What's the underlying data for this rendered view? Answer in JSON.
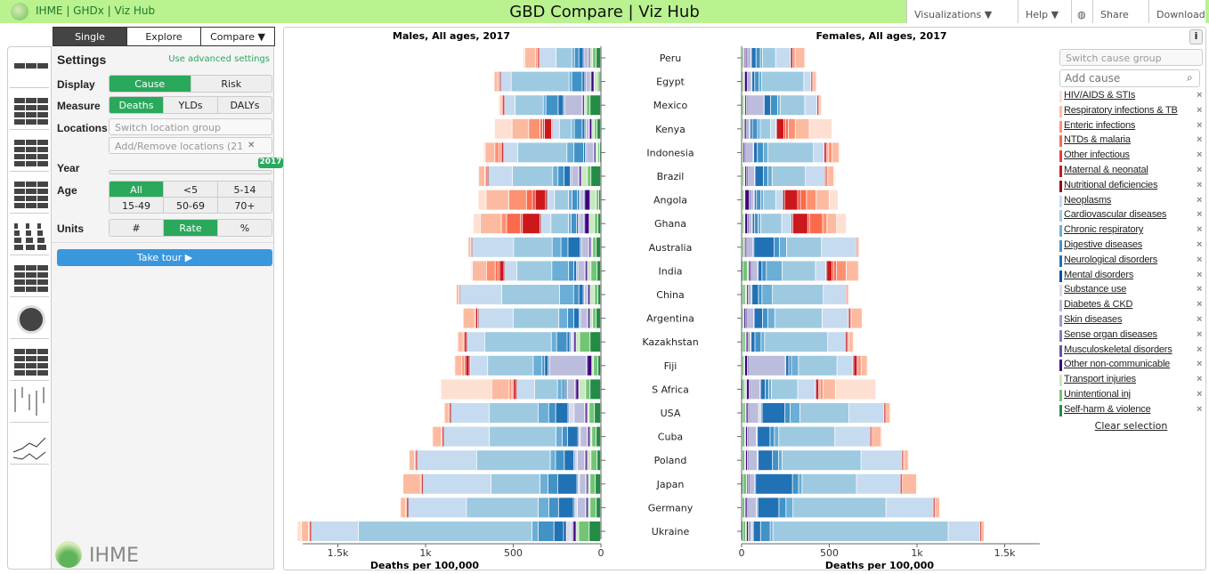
{
  "header": {
    "nav": "IHME | GHDx | Viz Hub",
    "title": "GBD Compare | Viz Hub",
    "visualizations": "Visualizations  ▼",
    "help": "Help  ▼",
    "share": "Share",
    "download": "Download"
  },
  "tabs": [
    "Single",
    "Explore",
    "Compare ▼"
  ],
  "sidebar_icons": [
    "world-map",
    "treemap",
    "arrow-diagram",
    "rank-lines",
    "pyramid",
    "stacked-bar",
    "sunburst",
    "heatmap",
    "range-plot",
    "line-chart"
  ],
  "settings": {
    "title": "Settings",
    "advanced": "Use advanced settings",
    "display": {
      "label": "Display",
      "options": [
        "Cause",
        "Risk"
      ],
      "selected": "Cause"
    },
    "measure": {
      "label": "Measure",
      "options": [
        "Deaths",
        "YLDs",
        "DALYs"
      ],
      "selected": "Deaths"
    },
    "locations": {
      "label": "Locations",
      "group_placeholder": "Switch location group",
      "add_remove": "Add/Remove locations (21)"
    },
    "year": {
      "label": "Year",
      "value": "2017"
    },
    "age": {
      "label": "Age",
      "options": [
        "All",
        "<5",
        "5-14",
        "15-49",
        "50-69",
        "70+"
      ],
      "selected": "All"
    },
    "units": {
      "label": "Units",
      "options": [
        "#",
        "Rate",
        "%"
      ],
      "selected": "Rate"
    },
    "tour": "Take tour ▶"
  },
  "brand": "IHME",
  "right_panel": {
    "info": "i",
    "cause_group_placeholder": "Switch cause group",
    "add_cause_placeholder": "Add cause",
    "clear": "Clear selection"
  },
  "chart_data": {
    "type": "bar",
    "orientation": "horizontal-stacked-pyramid",
    "xlabel": "Deaths per 100,000",
    "xlim": [
      0,
      1700
    ],
    "ticks": [
      0,
      500,
      1000,
      1500
    ],
    "tick_labels": [
      "0",
      "500",
      "1k",
      "1.5k"
    ],
    "categories": [
      "Peru",
      "Egypt",
      "Mexico",
      "Kenya",
      "Indonesia",
      "Brazil",
      "Angola",
      "Ghana",
      "Australia",
      "India",
      "China",
      "Argentina",
      "Kazakhstan",
      "Fiji",
      "S Africa",
      "USA",
      "Cuba",
      "Poland",
      "Japan",
      "Germany",
      "Ukraine"
    ],
    "causes": [
      {
        "name": "HIV/AIDS & STIs",
        "color": "#fee0d2"
      },
      {
        "name": "Respiratory infections & TB",
        "color": "#fcbba1"
      },
      {
        "name": "Enteric infections",
        "color": "#fc9272"
      },
      {
        "name": "NTDs & malaria",
        "color": "#fb6a4a"
      },
      {
        "name": "Other infectious",
        "color": "#ef3b2c"
      },
      {
        "name": "Maternal & neonatal",
        "color": "#cb181d"
      },
      {
        "name": "Nutritional deficiencies",
        "color": "#99000d"
      },
      {
        "name": "Neoplasms",
        "color": "#c6dbef"
      },
      {
        "name": "Cardiovascular diseases",
        "color": "#9ecae1"
      },
      {
        "name": "Chronic respiratory",
        "color": "#6baed6"
      },
      {
        "name": "Digestive diseases",
        "color": "#4292c6"
      },
      {
        "name": "Neurological disorders",
        "color": "#2171b5"
      },
      {
        "name": "Mental disorders",
        "color": "#08519c"
      },
      {
        "name": "Substance use",
        "color": "#dadaeb"
      },
      {
        "name": "Diabetes & CKD",
        "color": "#bcbddc"
      },
      {
        "name": "Skin diseases",
        "color": "#9e9ac8"
      },
      {
        "name": "Sense organ diseases",
        "color": "#807dba"
      },
      {
        "name": "Musculoskeletal disorders",
        "color": "#6a51a3"
      },
      {
        "name": "Other non-communicable",
        "color": "#3f007d"
      },
      {
        "name": "Transport injuries",
        "color": "#c7e9c0"
      },
      {
        "name": "Unintentional inj",
        "color": "#74c476"
      },
      {
        "name": "Self-harm & violence",
        "color": "#238b45"
      }
    ],
    "panels": [
      {
        "title": "Males, All ages, 2017",
        "values": [
          [
            10,
            60,
            10,
            2,
            3,
            5,
            3,
            95,
            90,
            15,
            25,
            25,
            1,
            3,
            25,
            2,
            0,
            3,
            5,
            15,
            20,
            25
          ],
          [
            3,
            20,
            5,
            0,
            3,
            5,
            3,
            60,
            330,
            15,
            60,
            15,
            2,
            5,
            25,
            2,
            1,
            2,
            15,
            20,
            10,
            8
          ],
          [
            5,
            10,
            5,
            0,
            3,
            8,
            3,
            60,
            160,
            15,
            70,
            30,
            2,
            5,
            100,
            2,
            1,
            2,
            8,
            12,
            20,
            60
          ],
          [
            100,
            95,
            65,
            15,
            10,
            40,
            5,
            40,
            70,
            15,
            45,
            15,
            3,
            5,
            15,
            2,
            1,
            2,
            12,
            15,
            15,
            20
          ],
          [
            10,
            55,
            25,
            8,
            5,
            10,
            3,
            80,
            280,
            40,
            55,
            10,
            2,
            5,
            40,
            2,
            1,
            2,
            8,
            12,
            10,
            5
          ],
          [
            5,
            35,
            5,
            2,
            3,
            5,
            2,
            140,
            230,
            30,
            35,
            35,
            3,
            5,
            40,
            2,
            1,
            2,
            10,
            35,
            20,
            55
          ],
          [
            45,
            130,
            100,
            35,
            15,
            60,
            10,
            40,
            80,
            20,
            30,
            10,
            3,
            5,
            20,
            2,
            1,
            2,
            30,
            35,
            15,
            10
          ],
          [
            40,
            120,
            30,
            80,
            10,
            100,
            8,
            55,
            100,
            15,
            30,
            10,
            3,
            5,
            25,
            2,
            1,
            2,
            25,
            30,
            20,
            15
          ],
          [
            0,
            15,
            3,
            0,
            0,
            1,
            0,
            240,
            220,
            50,
            40,
            70,
            3,
            5,
            40,
            2,
            1,
            2,
            8,
            10,
            20,
            25
          ],
          [
            8,
            80,
            50,
            15,
            10,
            25,
            3,
            70,
            200,
            95,
            30,
            15,
            3,
            5,
            40,
            2,
            1,
            2,
            10,
            20,
            35,
            20
          ],
          [
            2,
            15,
            1,
            0,
            0,
            2,
            0,
            240,
            330,
            80,
            30,
            25,
            3,
            5,
            15,
            3,
            1,
            2,
            10,
            25,
            20,
            15
          ],
          [
            3,
            65,
            5,
            0,
            2,
            10,
            3,
            200,
            260,
            50,
            35,
            30,
            3,
            5,
            40,
            2,
            1,
            2,
            10,
            15,
            20,
            25
          ],
          [
            5,
            30,
            5,
            0,
            3,
            12,
            3,
            100,
            380,
            30,
            60,
            15,
            3,
            10,
            8,
            2,
            1,
            2,
            10,
            20,
            60,
            60
          ],
          [
            3,
            40,
            15,
            2,
            5,
            20,
            5,
            100,
            260,
            50,
            15,
            20,
            3,
            5,
            210,
            3,
            1,
            2,
            25,
            10,
            25,
            15
          ],
          [
            290,
            100,
            15,
            5,
            5,
            15,
            5,
            100,
            130,
            25,
            15,
            10,
            3,
            5,
            40,
            3,
            2,
            3,
            15,
            40,
            25,
            60
          ],
          [
            3,
            25,
            3,
            0,
            2,
            3,
            1,
            220,
            280,
            60,
            40,
            70,
            5,
            30,
            60,
            2,
            1,
            3,
            10,
            10,
            30,
            35
          ],
          [
            3,
            50,
            5,
            0,
            2,
            5,
            2,
            260,
            380,
            35,
            30,
            60,
            3,
            10,
            40,
            2,
            1,
            3,
            10,
            10,
            25,
            25
          ],
          [
            2,
            30,
            5,
            0,
            2,
            5,
            2,
            340,
            420,
            30,
            50,
            55,
            5,
            15,
            40,
            3,
            1,
            3,
            10,
            20,
            35,
            20
          ],
          [
            1,
            100,
            5,
            0,
            2,
            3,
            2,
            390,
            280,
            45,
            55,
            110,
            5,
            10,
            35,
            3,
            1,
            3,
            8,
            10,
            30,
            30
          ],
          [
            2,
            30,
            5,
            0,
            2,
            3,
            1,
            335,
            410,
            60,
            55,
            85,
            8,
            15,
            45,
            3,
            1,
            3,
            10,
            10,
            35,
            25
          ],
          [
            25,
            40,
            5,
            0,
            3,
            5,
            1,
            270,
            990,
            35,
            90,
            55,
            15,
            25,
            10,
            2,
            1,
            3,
            15,
            15,
            60,
            65
          ]
        ]
      },
      {
        "title": "Females, All ages, 2017",
        "values": [
          [
            5,
            55,
            8,
            2,
            3,
            10,
            3,
            85,
            75,
            12,
            25,
            25,
            1,
            2,
            25,
            2,
            1,
            2,
            8,
            5,
            8,
            5
          ],
          [
            2,
            15,
            5,
            0,
            2,
            5,
            3,
            40,
            240,
            15,
            25,
            15,
            1,
            2,
            20,
            2,
            1,
            2,
            15,
            8,
            8,
            3
          ],
          [
            2,
            8,
            5,
            0,
            2,
            5,
            3,
            70,
            140,
            15,
            40,
            35,
            1,
            2,
            95,
            2,
            1,
            2,
            8,
            5,
            8,
            8
          ],
          [
            130,
            80,
            40,
            15,
            10,
            40,
            5,
            30,
            60,
            15,
            30,
            10,
            2,
            3,
            15,
            2,
            1,
            2,
            10,
            5,
            8,
            5
          ],
          [
            5,
            40,
            20,
            8,
            5,
            10,
            3,
            60,
            260,
            25,
            35,
            20,
            1,
            3,
            45,
            2,
            1,
            2,
            8,
            4,
            4,
            2
          ],
          [
            3,
            35,
            5,
            2,
            3,
            5,
            2,
            110,
            190,
            25,
            25,
            45,
            2,
            3,
            40,
            2,
            1,
            2,
            10,
            8,
            8,
            5
          ],
          [
            50,
            75,
            55,
            35,
            15,
            75,
            10,
            40,
            70,
            15,
            25,
            10,
            2,
            4,
            20,
            2,
            1,
            2,
            25,
            8,
            8,
            5
          ],
          [
            55,
            55,
            25,
            75,
            10,
            85,
            8,
            55,
            120,
            15,
            20,
            10,
            2,
            3,
            20,
            2,
            1,
            2,
            15,
            8,
            8,
            5
          ],
          [
            0,
            10,
            3,
            0,
            0,
            1,
            0,
            200,
            200,
            40,
            30,
            115,
            3,
            3,
            35,
            2,
            1,
            2,
            8,
            4,
            10,
            5
          ],
          [
            5,
            70,
            55,
            15,
            10,
            30,
            5,
            60,
            190,
            90,
            25,
            20,
            2,
            3,
            35,
            2,
            1,
            2,
            10,
            8,
            25,
            10
          ],
          [
            1,
            10,
            1,
            0,
            0,
            2,
            0,
            130,
            290,
            60,
            20,
            35,
            2,
            2,
            15,
            2,
            1,
            2,
            8,
            8,
            15,
            8
          ],
          [
            2,
            60,
            5,
            0,
            2,
            8,
            3,
            150,
            270,
            40,
            30,
            45,
            2,
            3,
            40,
            2,
            1,
            2,
            10,
            4,
            8,
            4
          ],
          [
            2,
            25,
            5,
            0,
            2,
            10,
            3,
            100,
            360,
            20,
            35,
            20,
            2,
            3,
            10,
            2,
            1,
            2,
            10,
            5,
            15,
            8
          ],
          [
            3,
            35,
            15,
            2,
            5,
            20,
            5,
            90,
            220,
            40,
            15,
            15,
            2,
            3,
            210,
            3,
            1,
            2,
            15,
            5,
            10,
            5
          ],
          [
            230,
            70,
            15,
            5,
            5,
            15,
            5,
            100,
            150,
            15,
            20,
            25,
            2,
            3,
            55,
            3,
            1,
            3,
            15,
            10,
            10,
            10
          ],
          [
            1,
            25,
            3,
            0,
            2,
            3,
            1,
            200,
            280,
            55,
            30,
            130,
            5,
            15,
            55,
            2,
            1,
            3,
            10,
            5,
            15,
            8
          ],
          [
            2,
            50,
            5,
            0,
            2,
            5,
            2,
            200,
            320,
            25,
            25,
            70,
            3,
            5,
            45,
            2,
            1,
            3,
            10,
            5,
            15,
            5
          ],
          [
            1,
            25,
            5,
            0,
            2,
            5,
            2,
            230,
            450,
            20,
            35,
            80,
            2,
            5,
            50,
            2,
            1,
            3,
            10,
            5,
            15,
            5
          ],
          [
            1,
            80,
            5,
            0,
            2,
            3,
            2,
            250,
            310,
            20,
            35,
            210,
            2,
            3,
            30,
            2,
            1,
            3,
            8,
            3,
            20,
            10
          ],
          [
            1,
            25,
            5,
            0,
            2,
            3,
            1,
            270,
            530,
            40,
            40,
            120,
            5,
            5,
            45,
            3,
            1,
            3,
            10,
            3,
            15,
            5
          ],
          [
            3,
            15,
            3,
            0,
            2,
            3,
            1,
            180,
            1000,
            15,
            55,
            40,
            5,
            5,
            15,
            2,
            1,
            2,
            10,
            5,
            15,
            10
          ]
        ]
      }
    ]
  }
}
